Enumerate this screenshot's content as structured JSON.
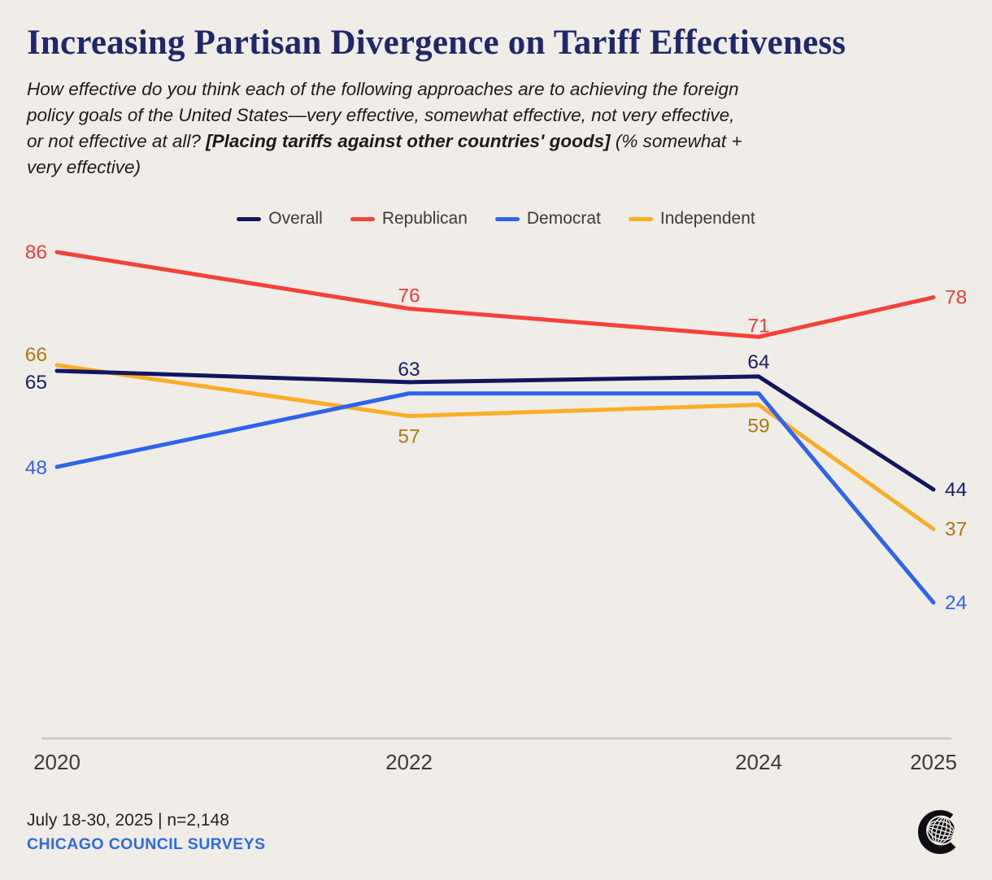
{
  "title": "Increasing Partisan Divergence on Tariff Effectiveness",
  "subtitle": {
    "lead": "How effective do you think each of the following approaches are to achieving the foreign\npolicy goals of the United States—very effective, somewhat effective, not very effective,\nor not effective at all? ",
    "emphasis": "[Placing tariffs against other countries' goods]",
    "tail": " (% somewhat +\nvery effective)"
  },
  "chart_data": {
    "type": "line",
    "title": "Increasing Partisan Divergence on Tariff Effectiveness",
    "unit": "% somewhat + very effective",
    "x": [
      2020,
      2022,
      2024,
      2025
    ],
    "x_tick_labels": [
      "2020",
      "2022",
      "2024",
      "2025"
    ],
    "ylim": [
      20,
      90
    ],
    "grid": false,
    "y_axis_visible": false,
    "legend_position": "top-center",
    "series": [
      {
        "name": "Overall",
        "color": "#121660",
        "label_color": "#1A2066",
        "values": [
          65,
          63,
          64,
          44
        ],
        "show_labels": [
          true,
          true,
          true,
          true
        ]
      },
      {
        "name": "Republican",
        "color": "#F4423B",
        "label_color": "#EC3E38",
        "values": [
          86,
          76,
          71,
          78
        ],
        "show_labels": [
          true,
          true,
          true,
          true
        ]
      },
      {
        "name": "Democrat",
        "color": "#2E64EC",
        "label_color": "#2E64EC",
        "values": [
          48,
          61,
          61,
          24
        ],
        "show_labels": [
          true,
          false,
          false,
          true
        ]
      },
      {
        "name": "Independent",
        "color": "#FBAD26",
        "label_color": "#B0790F",
        "values": [
          66,
          57,
          59,
          37
        ],
        "show_labels": [
          true,
          true,
          true,
          true
        ]
      }
    ]
  },
  "footer": {
    "source_line": "July 18-30, 2025 | n=2,148",
    "org": "CHICAGO COUNCIL SURVEYS"
  },
  "logo": {
    "name": "chicago-council-globe-logo"
  },
  "colors": {
    "background": "#F0ECE8",
    "title": "#20276B",
    "subtitle_text": "#1C1C1C",
    "axis_line": "#CBC8C4",
    "tick": "#3B3B3B",
    "legend_text": "#3B3B3B",
    "meta_text": "#232323",
    "org_link": "#2D6BE4",
    "logo": "#0D0D12"
  }
}
